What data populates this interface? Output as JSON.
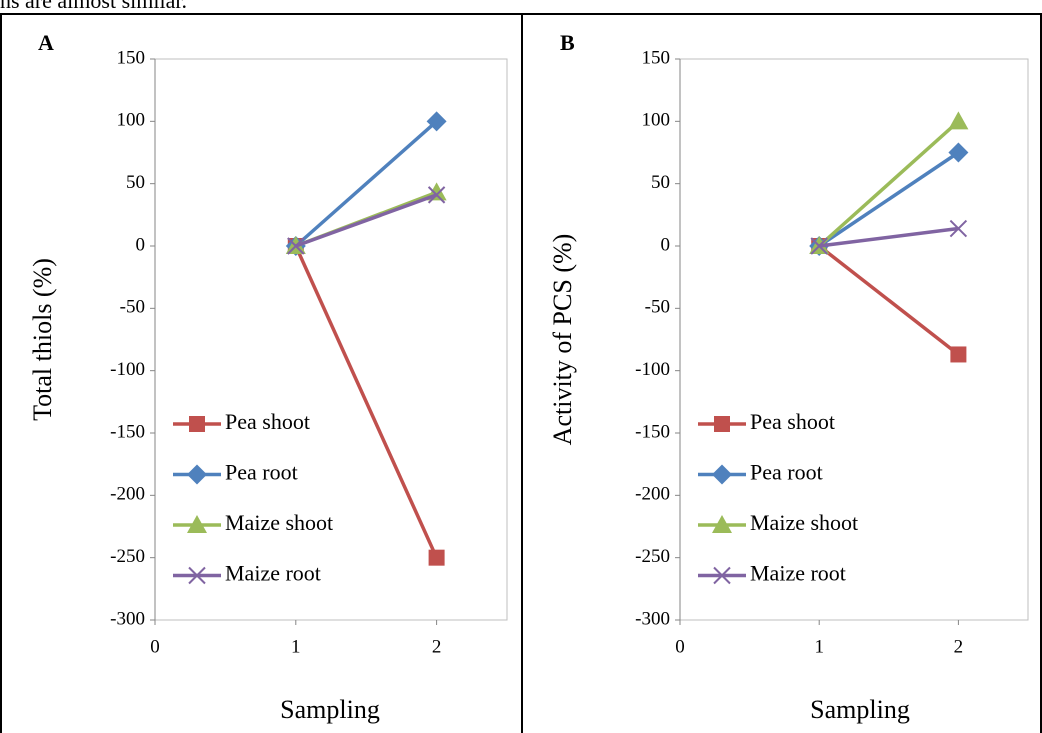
{
  "header_text": "ns are almost similar.",
  "chart_data": [
    {
      "type": "line",
      "panel_label": "A",
      "y_label": "Total thiols (%)",
      "x_label": "Sampling",
      "x": [
        1,
        2
      ],
      "xlim": [
        0,
        2.5
      ],
      "xticks": [
        0,
        1,
        2
      ],
      "ylim": [
        -300,
        150
      ],
      "yticks": [
        150,
        100,
        50,
        0,
        -50,
        -100,
        -150,
        -200,
        -250,
        -300
      ],
      "legend": "left",
      "series": [
        {
          "name": "Pea shoot",
          "color": "#c0504d",
          "marker": "square",
          "values": [
            0,
            -250
          ]
        },
        {
          "name": "Pea root",
          "color": "#4f81bd",
          "marker": "diamond",
          "values": [
            0,
            100
          ]
        },
        {
          "name": "Maize shoot",
          "color": "#9bbb59",
          "marker": "triangle",
          "values": [
            0,
            43
          ]
        },
        {
          "name": "Maize root",
          "color": "#8064a2",
          "marker": "x",
          "values": [
            0,
            41
          ]
        }
      ]
    },
    {
      "type": "line",
      "panel_label": "B",
      "y_label": "Activity of PCS (%)",
      "x_label": "Sampling",
      "x": [
        1,
        2
      ],
      "xlim": [
        0,
        2.5
      ],
      "xticks": [
        0,
        1,
        2
      ],
      "ylim": [
        -300,
        150
      ],
      "yticks": [
        150,
        100,
        50,
        0,
        -50,
        -100,
        -150,
        -200,
        -250,
        -300
      ],
      "legend": "left",
      "series": [
        {
          "name": "Pea shoot",
          "color": "#c0504d",
          "marker": "square",
          "values": [
            0,
            -87
          ]
        },
        {
          "name": "Pea root",
          "color": "#4f81bd",
          "marker": "diamond",
          "values": [
            0,
            75
          ]
        },
        {
          "name": "Maize shoot",
          "color": "#9bbb59",
          "marker": "triangle",
          "values": [
            0,
            100
          ]
        },
        {
          "name": "Maize root",
          "color": "#8064a2",
          "marker": "x",
          "values": [
            0,
            14
          ]
        }
      ]
    }
  ]
}
